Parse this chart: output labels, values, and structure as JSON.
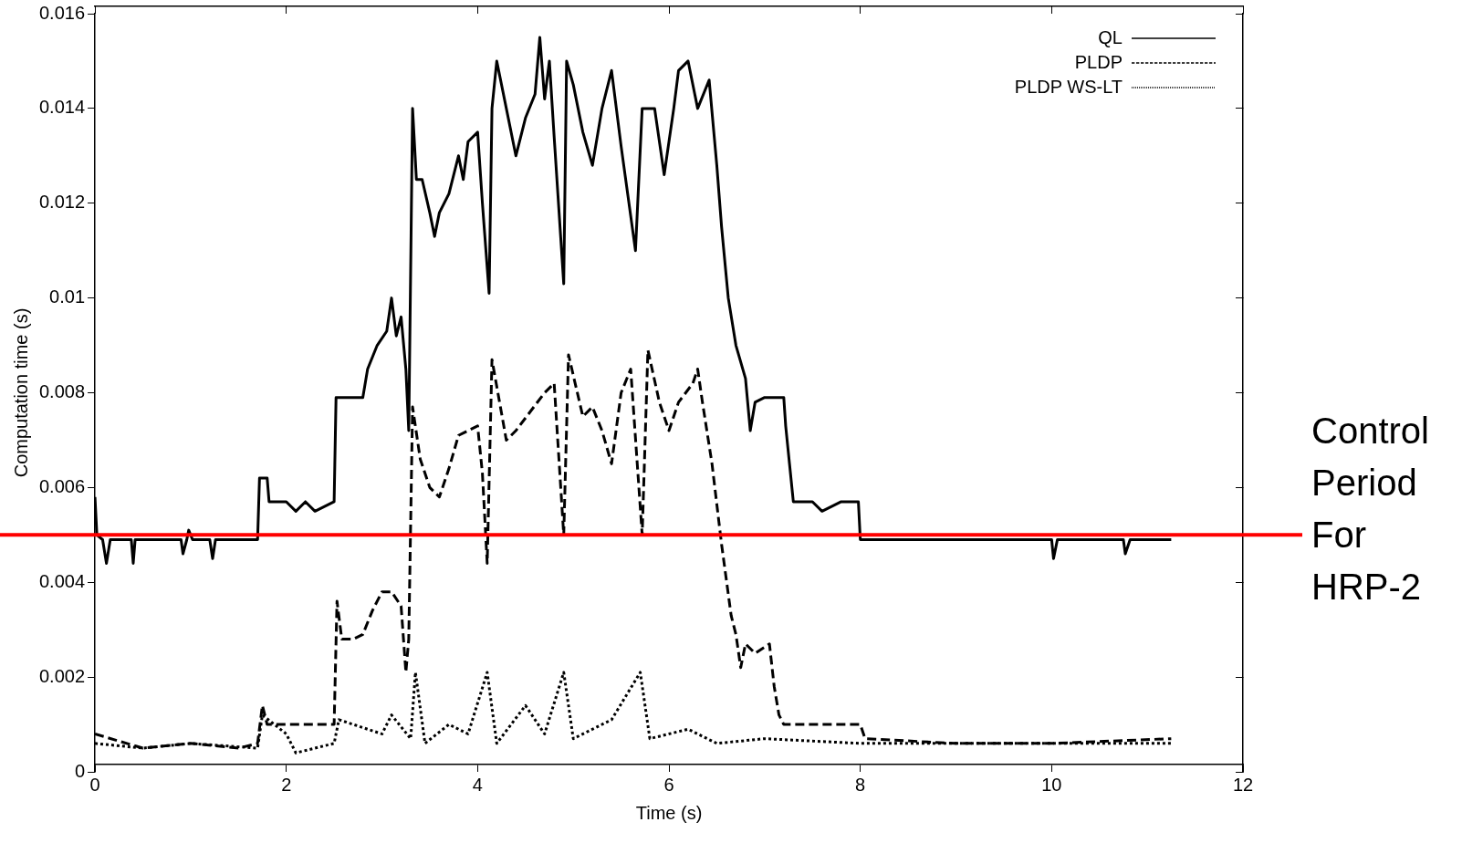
{
  "chart_data": {
    "type": "line",
    "xlabel": "Time (s)",
    "ylabel": "Computation time (s)",
    "xlim": [
      0,
      12
    ],
    "xticks": [
      0,
      2,
      4,
      6,
      8,
      10,
      12
    ],
    "ylim": [
      0,
      0.016
    ],
    "yticks": [
      0,
      0.002,
      0.004,
      0.006,
      0.008,
      0.01,
      0.012,
      0.014,
      0.016
    ],
    "grid": false,
    "legend": "top right",
    "marker": "none",
    "ref_lines": [
      {
        "axis": "y",
        "value": 0.005,
        "label": "Control Period For HRP-2",
        "color": "#ff0000"
      }
    ],
    "series": [
      {
        "name": "QL",
        "color": "#000000",
        "line_style": "solid",
        "x": [
          0,
          0.02,
          0.08,
          0.12,
          0.16,
          0.38,
          0.4,
          0.42,
          0.9,
          0.92,
          0.96,
          0.98,
          1.02,
          1.2,
          1.23,
          1.26,
          1.7,
          1.72,
          1.8,
          1.82,
          2.0,
          2.1,
          2.2,
          2.3,
          2.5,
          2.52,
          2.7,
          2.8,
          2.85,
          2.95,
          3.05,
          3.1,
          3.15,
          3.2,
          3.25,
          3.28,
          3.32,
          3.36,
          3.42,
          3.5,
          3.55,
          3.6,
          3.7,
          3.8,
          3.85,
          3.9,
          4.0,
          4.05,
          4.12,
          4.15,
          4.2,
          4.3,
          4.4,
          4.5,
          4.6,
          4.65,
          4.7,
          4.75,
          4.8,
          4.9,
          4.93,
          5.0,
          5.1,
          5.2,
          5.3,
          5.4,
          5.5,
          5.65,
          5.72,
          5.85,
          5.95,
          6.05,
          6.1,
          6.2,
          6.3,
          6.42,
          6.5,
          6.55,
          6.62,
          6.7,
          6.8,
          6.85,
          6.9,
          7.0,
          7.2,
          7.22,
          7.3,
          7.5,
          7.6,
          7.8,
          7.98,
          8.0,
          10.0,
          10.02,
          10.06,
          10.75,
          10.77,
          10.82,
          11.25
        ],
        "values": [
          0.0058,
          0.005,
          0.0049,
          0.0044,
          0.0049,
          0.0049,
          0.0044,
          0.0049,
          0.0049,
          0.0046,
          0.0049,
          0.0051,
          0.0049,
          0.0049,
          0.0045,
          0.0049,
          0.0049,
          0.0062,
          0.0062,
          0.0057,
          0.0057,
          0.0055,
          0.0057,
          0.0055,
          0.0057,
          0.0079,
          0.0079,
          0.0079,
          0.0085,
          0.009,
          0.0093,
          0.01,
          0.0092,
          0.0096,
          0.0085,
          0.0072,
          0.014,
          0.0125,
          0.0125,
          0.0118,
          0.0113,
          0.0118,
          0.0122,
          0.013,
          0.0125,
          0.0133,
          0.0135,
          0.012,
          0.0101,
          0.014,
          0.015,
          0.014,
          0.013,
          0.0138,
          0.0143,
          0.0155,
          0.0142,
          0.015,
          0.0134,
          0.0103,
          0.015,
          0.0145,
          0.0135,
          0.0128,
          0.014,
          0.0148,
          0.0132,
          0.011,
          0.014,
          0.014,
          0.0126,
          0.014,
          0.0148,
          0.015,
          0.014,
          0.0146,
          0.0128,
          0.0115,
          0.01,
          0.009,
          0.0083,
          0.0072,
          0.0078,
          0.0079,
          0.0079,
          0.0073,
          0.0057,
          0.0057,
          0.0055,
          0.0057,
          0.0057,
          0.0049,
          0.0049,
          0.0045,
          0.0049,
          0.0049,
          0.0046,
          0.0049,
          0.0049
        ]
      },
      {
        "name": "PLDP",
        "color": "#000000",
        "line_style": "dashed",
        "x": [
          0,
          0.5,
          1.0,
          1.5,
          1.7,
          1.75,
          1.8,
          2.5,
          2.53,
          2.58,
          2.7,
          2.8,
          2.9,
          3.0,
          3.1,
          3.2,
          3.25,
          3.28,
          3.32,
          3.4,
          3.5,
          3.6,
          3.7,
          3.8,
          3.9,
          4.0,
          4.05,
          4.1,
          4.15,
          4.3,
          4.4,
          4.55,
          4.7,
          4.8,
          4.9,
          4.95,
          5.1,
          5.2,
          5.3,
          5.4,
          5.5,
          5.6,
          5.72,
          5.78,
          5.9,
          6.0,
          6.1,
          6.25,
          6.3,
          6.35,
          6.45,
          6.55,
          6.65,
          6.7,
          6.75,
          6.8,
          6.9,
          7.05,
          7.1,
          7.15,
          7.2,
          7.5,
          8.0,
          8.05,
          9,
          10,
          11.25
        ],
        "values": [
          0.0008,
          0.0005,
          0.0006,
          0.0005,
          0.0006,
          0.0014,
          0.001,
          0.001,
          0.0036,
          0.0028,
          0.0028,
          0.0029,
          0.0034,
          0.0038,
          0.0038,
          0.0035,
          0.0021,
          0.0028,
          0.0077,
          0.0066,
          0.006,
          0.0058,
          0.0064,
          0.0071,
          0.0072,
          0.0073,
          0.0063,
          0.0044,
          0.0087,
          0.007,
          0.0072,
          0.0076,
          0.008,
          0.0082,
          0.005,
          0.0088,
          0.0075,
          0.0077,
          0.0072,
          0.0065,
          0.008,
          0.0085,
          0.005,
          0.0089,
          0.0078,
          0.0072,
          0.0078,
          0.0082,
          0.0085,
          0.0078,
          0.0065,
          0.0048,
          0.0033,
          0.0029,
          0.0022,
          0.0027,
          0.0025,
          0.0027,
          0.0018,
          0.0012,
          0.001,
          0.001,
          0.001,
          0.0007,
          0.0006,
          0.0006,
          0.0007
        ]
      },
      {
        "name": "PLDP WS-LT",
        "color": "#000000",
        "line_style": "dotted",
        "x": [
          0,
          0.5,
          1.0,
          1.7,
          1.75,
          2.0,
          2.1,
          2.5,
          2.55,
          3.0,
          3.1,
          3.3,
          3.35,
          3.45,
          3.7,
          3.9,
          4.1,
          4.2,
          4.5,
          4.7,
          4.9,
          5.0,
          5.4,
          5.7,
          5.8,
          6.2,
          6.5,
          7,
          8,
          9,
          10,
          11.25
        ],
        "values": [
          0.0006,
          0.0005,
          0.0006,
          0.0005,
          0.0012,
          0.0008,
          0.0004,
          0.0006,
          0.0011,
          0.0008,
          0.0012,
          0.0007,
          0.0021,
          0.0006,
          0.001,
          0.0008,
          0.0021,
          0.0006,
          0.0014,
          0.0008,
          0.0021,
          0.0007,
          0.0011,
          0.0021,
          0.0007,
          0.0009,
          0.0006,
          0.0007,
          0.0006,
          0.0006,
          0.0006,
          0.0006
        ]
      }
    ]
  }
}
